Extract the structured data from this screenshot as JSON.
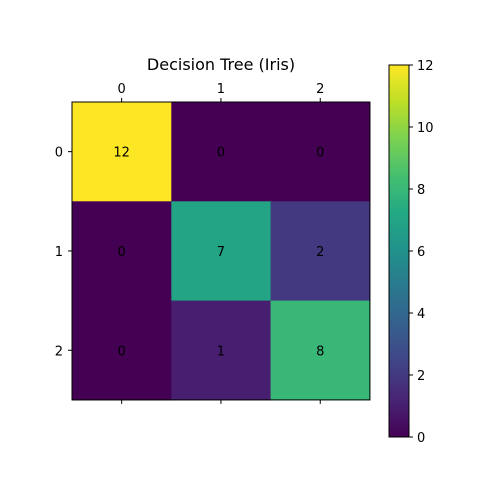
{
  "chart_data": {
    "type": "heatmap",
    "title": "Decision Tree (Iris)",
    "x_categories": [
      "0",
      "1",
      "2"
    ],
    "y_categories": [
      "0",
      "1",
      "2"
    ],
    "x_tick_position": "top-and-bottom",
    "values": [
      [
        12,
        0,
        0
      ],
      [
        0,
        7,
        2
      ],
      [
        0,
        1,
        8
      ]
    ],
    "colormap": "viridis",
    "colorbar": {
      "range": [
        0,
        12
      ],
      "ticks": [
        0,
        2,
        4,
        6,
        8,
        10,
        12
      ]
    },
    "grid": false
  }
}
